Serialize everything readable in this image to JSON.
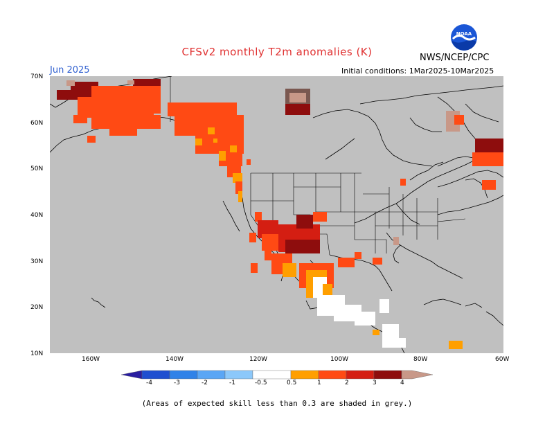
{
  "title": "CFSv2 monthly T2m anomalies (K)",
  "month": "Jun 2025",
  "agency": "NWS/NCEP/CPC",
  "initial_conditions": "Initial conditions: 1Mar2025-10Mar2025",
  "logo_text": "NOAA",
  "lat_labels": [
    "70N",
    "60N",
    "50N",
    "40N",
    "30N",
    "20N",
    "10N"
  ],
  "lon_labels": [
    "160W",
    "140W",
    "120W",
    "100W",
    "80W",
    "60W"
  ],
  "colorbar": {
    "labels": [
      "-4",
      "-3",
      "-2",
      "-1",
      "-0.5",
      "0.5",
      "1",
      "2",
      "3",
      "4"
    ],
    "colors": [
      "#2a1ea0",
      "#1f4fd0",
      "#2f82e8",
      "#5aa6f5",
      "#8cc8fa",
      "#ffffff",
      "#ff9f00",
      "#ff4a14",
      "#d41e12",
      "#8e0d0d",
      "#c89888",
      "#7a5850"
    ]
  },
  "background_color": "#c0c0c0",
  "footnote": "(Areas of expected skill less than 0.3 are shaded in grey.)"
}
